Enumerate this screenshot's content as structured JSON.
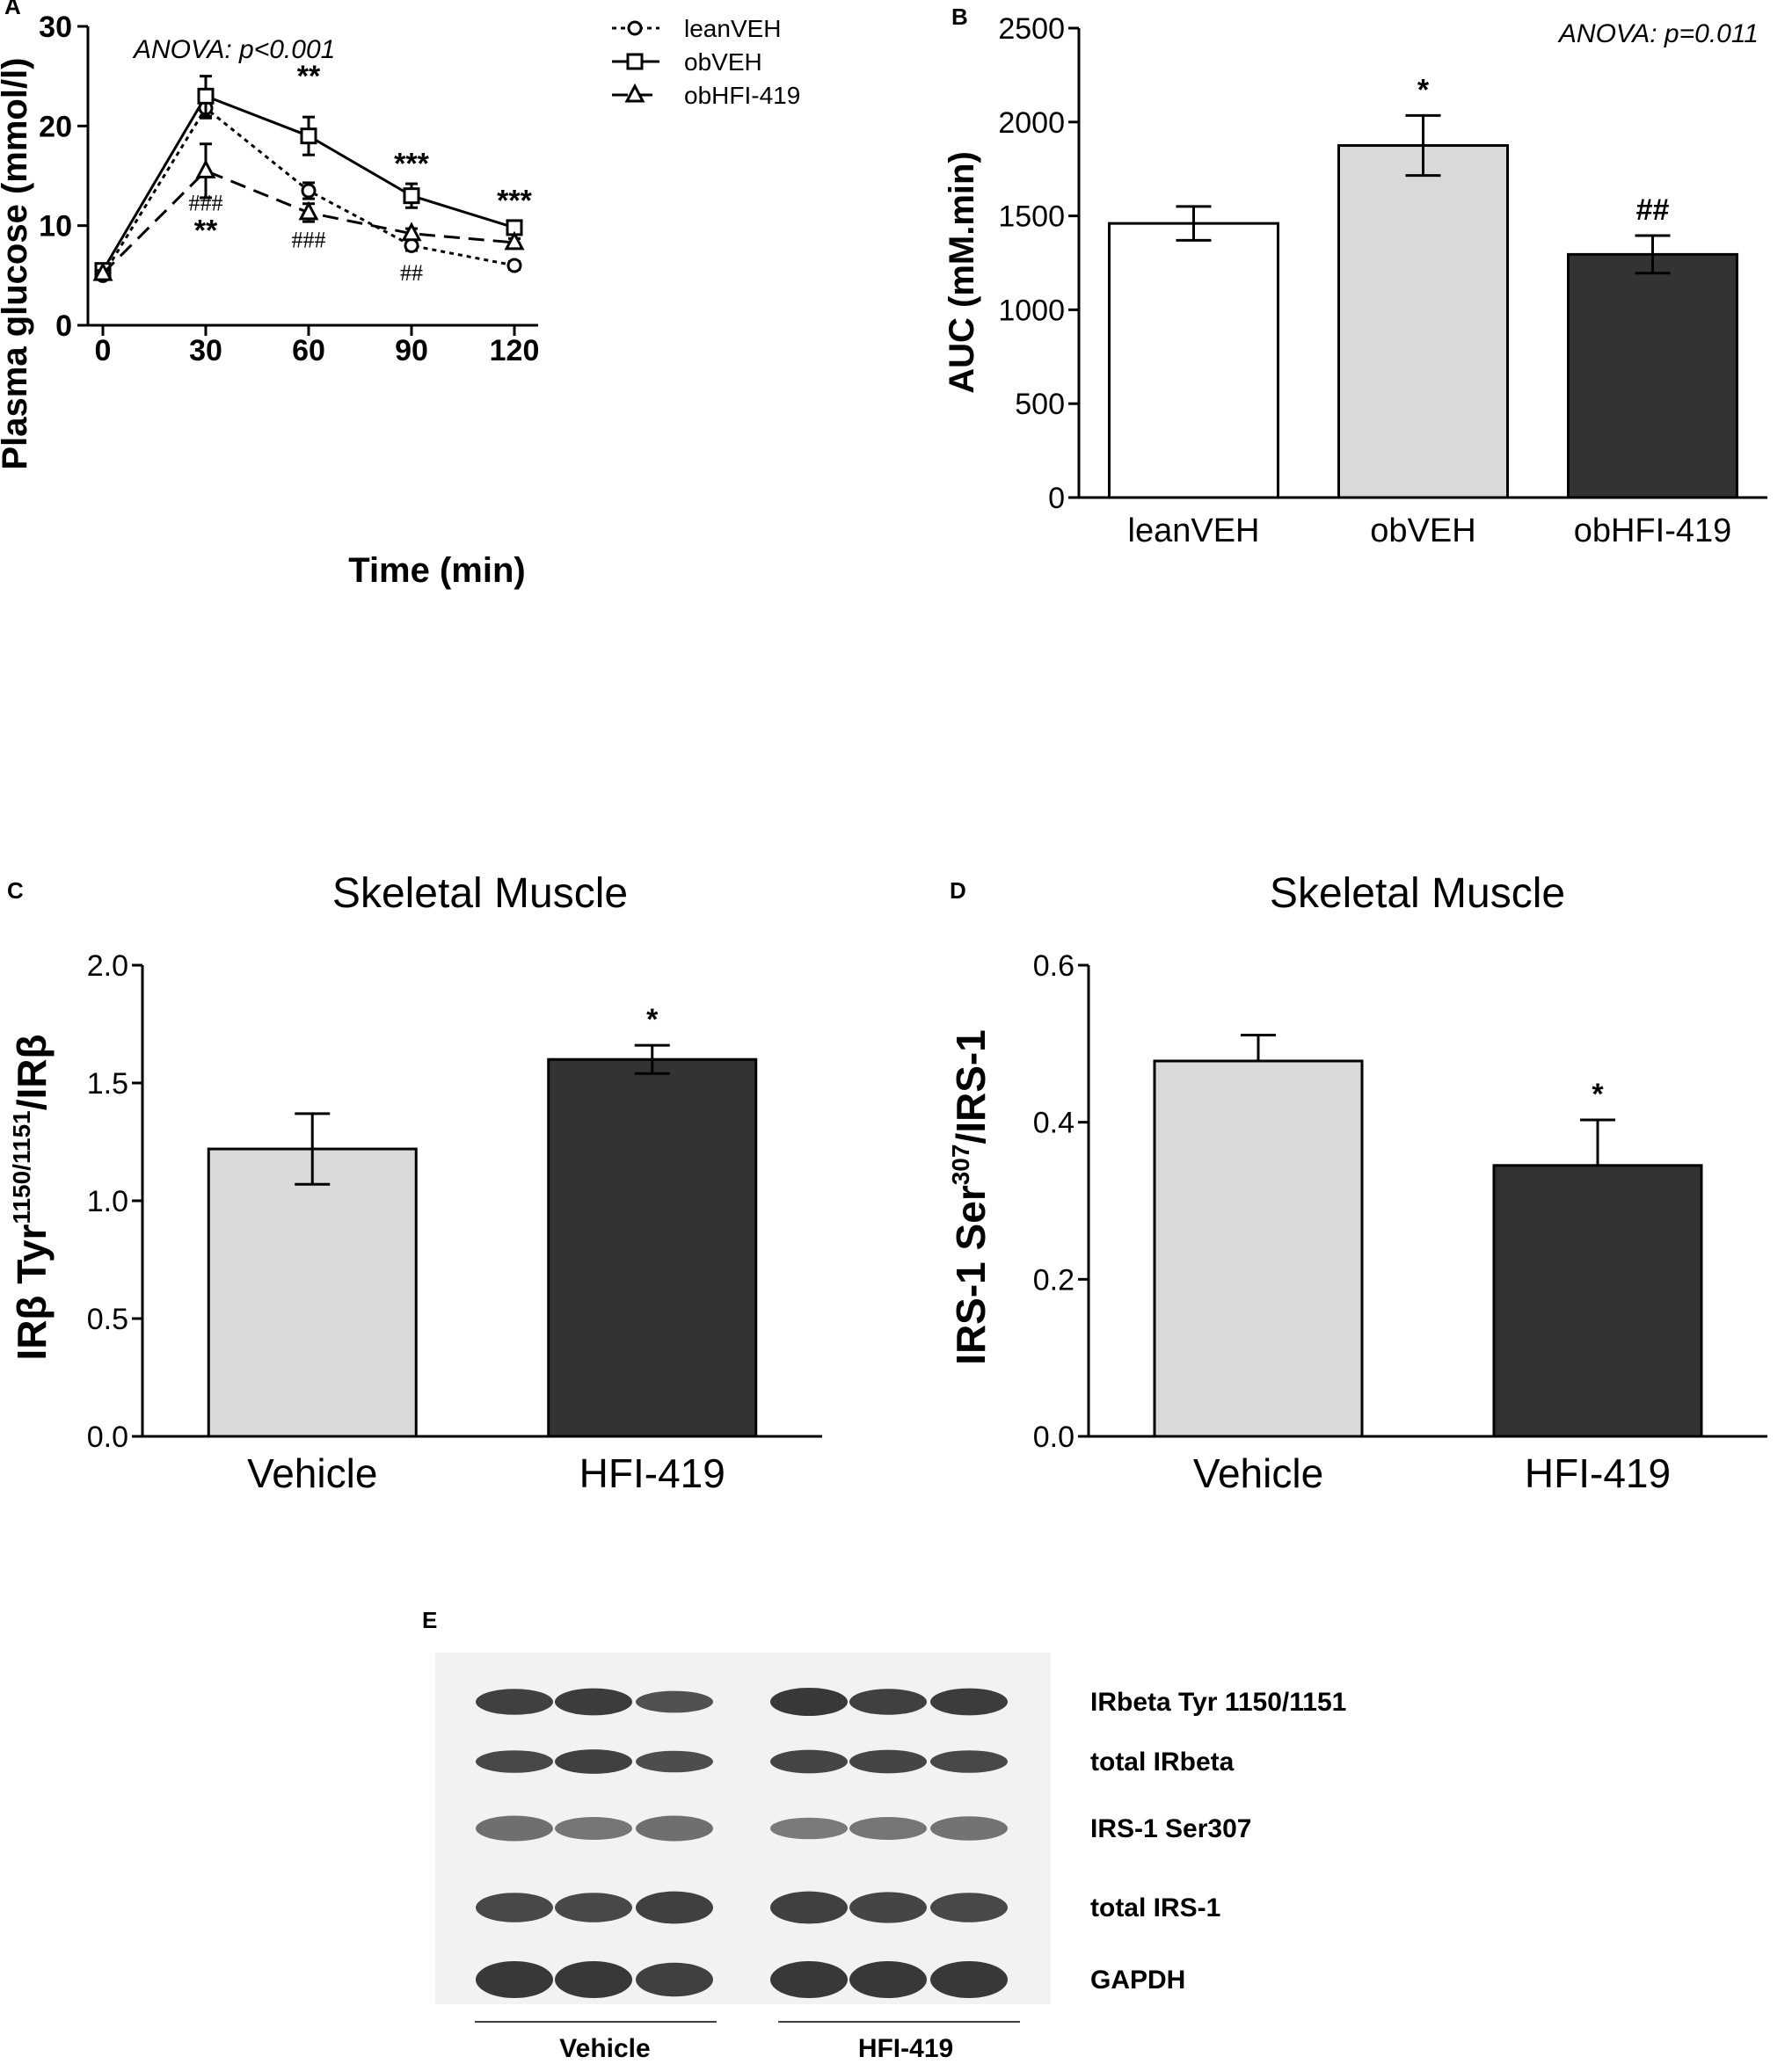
{
  "colors": {
    "white_bar": "#ffffff",
    "light_bar": "#d9d9d9",
    "dark_bar": "#333333",
    "axis": "#000000"
  },
  "panels": {
    "A": {
      "letter": "A",
      "anova": "ANOVA: p<0.001"
    },
    "B": {
      "letter": "B",
      "anova": "ANOVA: p=0.011"
    },
    "C": {
      "letter": "C"
    },
    "D": {
      "letter": "D"
    },
    "E": {
      "letter": "E"
    }
  },
  "chart_data": [
    {
      "id": "A",
      "type": "line",
      "title": "",
      "xlabel": "Time (min)",
      "ylabel": "Plasma glucose (mmol/l)",
      "x": [
        0,
        30,
        60,
        90,
        120
      ],
      "xticks": [
        "0",
        "30",
        "60",
        "90",
        "120"
      ],
      "ylim": [
        0,
        30
      ],
      "yticks": [
        "0",
        "10",
        "20",
        "30"
      ],
      "legend_position": "top-right",
      "series": [
        {
          "name": "leanVEH",
          "marker": "circle",
          "line": "dotted",
          "values": [
            5.0,
            21.8,
            13.5,
            8.0,
            6.0
          ],
          "errors": [
            0.3,
            1.0,
            0.8,
            0.5,
            0.4
          ]
        },
        {
          "name": "obVEH",
          "marker": "square",
          "line": "solid",
          "values": [
            5.5,
            23.0,
            19.0,
            13.0,
            9.8
          ],
          "errors": [
            0.4,
            2.0,
            1.9,
            1.2,
            0.5
          ]
        },
        {
          "name": "obHFI-419",
          "marker": "triangle",
          "line": "dashed",
          "values": [
            5.2,
            15.5,
            11.3,
            9.2,
            8.3
          ],
          "errors": [
            0.3,
            2.7,
            0.9,
            0.5,
            0.4
          ]
        }
      ],
      "annotations": [
        {
          "x": 30,
          "text": "###",
          "kind": "hash",
          "y": 11.5
        },
        {
          "x": 30,
          "text": "**",
          "kind": "star",
          "y": 8.5
        },
        {
          "x": 60,
          "text": "**",
          "kind": "star",
          "y": 24.0
        },
        {
          "x": 60,
          "text": "###",
          "kind": "hash",
          "y": 7.8
        },
        {
          "x": 90,
          "text": "***",
          "kind": "star",
          "y": 15.2
        },
        {
          "x": 90,
          "text": "##",
          "kind": "hash",
          "y": 4.5
        },
        {
          "x": 120,
          "text": "***",
          "kind": "star",
          "y": 11.5
        }
      ]
    },
    {
      "id": "B",
      "type": "bar",
      "title": "",
      "xlabel": "",
      "ylabel": "AUC (mM.min)",
      "categories": [
        "leanVEH",
        "obVEH",
        "obHFI-419"
      ],
      "values": [
        1460,
        1875,
        1295
      ],
      "errors": [
        90,
        160,
        100
      ],
      "fills": [
        "white",
        "light",
        "dark"
      ],
      "ylim": [
        0,
        2500
      ],
      "yticks": [
        "0",
        "500",
        "1000",
        "1500",
        "2000",
        "2500"
      ],
      "significance": [
        "",
        "*",
        "##"
      ]
    },
    {
      "id": "C",
      "type": "bar",
      "title": "Skeletal Muscle",
      "xlabel": "",
      "ylabel": "IRβ Tyr1150/1151/IRβ",
      "ylabel_parts": {
        "main": "IRβ Tyr",
        "sup": "1150/1151",
        "tail": "/IRβ"
      },
      "categories": [
        "Vehicle",
        "HFI-419"
      ],
      "values": [
        1.22,
        1.6
      ],
      "errors": [
        0.15,
        0.06
      ],
      "fills": [
        "light",
        "dark"
      ],
      "ylim": [
        0,
        2.0
      ],
      "yticks": [
        "0.0",
        "0.5",
        "1.0",
        "1.5",
        "2.0"
      ],
      "significance": [
        "",
        "*"
      ]
    },
    {
      "id": "D",
      "type": "bar",
      "title": "Skeletal Muscle",
      "xlabel": "",
      "ylabel": "IRS-1 Ser307/IRS-1",
      "ylabel_parts": {
        "main": "IRS-1 Ser",
        "sup": "307",
        "tail": "/IRS-1"
      },
      "categories": [
        "Vehicle",
        "HFI-419"
      ],
      "values": [
        0.478,
        0.345
      ],
      "errors": [
        0.033,
        0.058
      ],
      "fills": [
        "light",
        "dark"
      ],
      "ylim": [
        0,
        0.6
      ],
      "yticks": [
        "0.0",
        "0.2",
        "0.4",
        "0.6"
      ],
      "significance": [
        "",
        "*"
      ]
    }
  ],
  "blot": {
    "bands": [
      "IRbeta Tyr 1150/1151",
      "total IRbeta",
      "IRS-1 Ser307",
      "total IRS-1",
      "GAPDH"
    ],
    "groups": [
      "Vehicle",
      "HFI-419"
    ],
    "lanes": 6
  }
}
